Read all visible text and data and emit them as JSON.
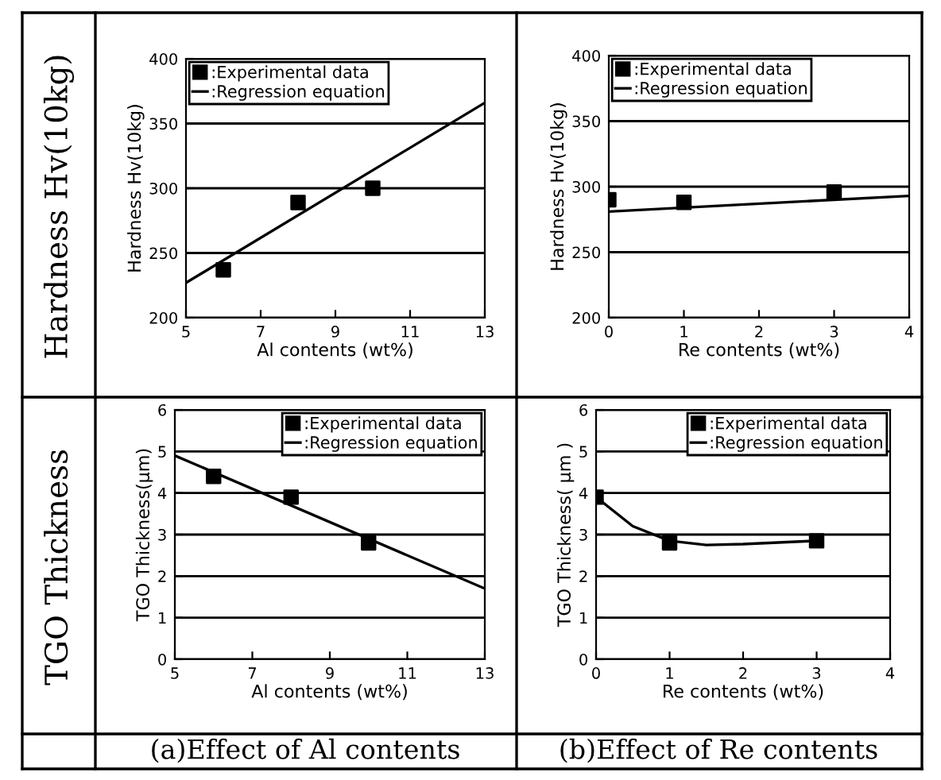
{
  "chart_data": [
    {
      "type": "line",
      "xlabel": "Al contents (wt%)",
      "ylabel": "Hardness Hv(10kg)",
      "annotations": [
        "Hardness Hv(10kg)"
      ],
      "xlim": [
        5,
        13
      ],
      "xticks": [
        5,
        7,
        9,
        11,
        13
      ],
      "ylim": [
        200,
        400
      ],
      "yticks": [
        200,
        250,
        300,
        350,
        400
      ],
      "grid": "y",
      "legend": "top left",
      "series": [
        {
          "name": ":Experimental data",
          "type": "scatter",
          "marker": "square",
          "color": "#000000",
          "x": [
            6,
            8,
            10
          ],
          "values": [
            237,
            289,
            300
          ]
        },
        {
          "name": ":Regression equation",
          "color": "#000000",
          "x": [
            5,
            13
          ],
          "values": [
            227,
            366
          ]
        }
      ]
    },
    {
      "type": "line",
      "xlabel": "Re contents (wt%)",
      "ylabel": "Hardness Hv(10kg)",
      "xlim": [
        0,
        4
      ],
      "xticks": [
        0,
        1,
        2,
        3,
        4
      ],
      "ylim": [
        200,
        400
      ],
      "yticks": [
        200,
        250,
        300,
        350,
        400
      ],
      "grid": "y",
      "legend": "top left",
      "series": [
        {
          "name": ":Experimental data",
          "type": "scatter",
          "marker": "square",
          "color": "#000000",
          "x": [
            0,
            1,
            3
          ],
          "values": [
            290,
            288,
            296
          ]
        },
        {
          "name": ":Regression equation",
          "color": "#000000",
          "x": [
            0,
            4
          ],
          "values": [
            281,
            293
          ]
        }
      ]
    },
    {
      "type": "line",
      "xlabel": "Al contents (wt%)",
      "ylabel": "TGO Thickness(μm)",
      "annotations": [
        "TGO Thickness",
        "(a)Effect of Al contents"
      ],
      "xlim": [
        5,
        13
      ],
      "xticks": [
        5,
        7,
        9,
        11,
        13
      ],
      "ylim": [
        0,
        6
      ],
      "yticks": [
        0,
        1,
        2,
        3,
        4,
        5,
        6
      ],
      "grid": "y",
      "legend": "top right",
      "series": [
        {
          "name": ":Experimental data",
          "type": "scatter",
          "marker": "square",
          "color": "#000000",
          "x": [
            6,
            8,
            10
          ],
          "values": [
            4.4,
            3.9,
            2.8
          ]
        },
        {
          "name": ":Regression equation",
          "color": "#000000",
          "x": [
            5,
            13
          ],
          "values": [
            4.9,
            1.7
          ]
        }
      ]
    },
    {
      "type": "line",
      "xlabel": "Re contents (wt%)",
      "ylabel": "TGO Thickness( μm )",
      "annotations": [
        "(b)Effect of Re contents"
      ],
      "xlim": [
        0,
        4
      ],
      "xticks": [
        0,
        1,
        2,
        3,
        4
      ],
      "ylim": [
        0,
        6
      ],
      "yticks": [
        0,
        1,
        2,
        3,
        4,
        5,
        6
      ],
      "grid": "y",
      "legend": "top right",
      "series": [
        {
          "name": ":Experimental data",
          "type": "scatter",
          "marker": "square",
          "color": "#000000",
          "x": [
            0,
            1,
            3
          ],
          "values": [
            3.9,
            2.8,
            2.85
          ]
        },
        {
          "name": ":Regression equation",
          "color": "#000000",
          "x": [
            0,
            0.5,
            1,
            1.5,
            2,
            3
          ],
          "values": [
            3.9,
            3.2,
            2.85,
            2.75,
            2.77,
            2.85
          ]
        }
      ]
    }
  ]
}
